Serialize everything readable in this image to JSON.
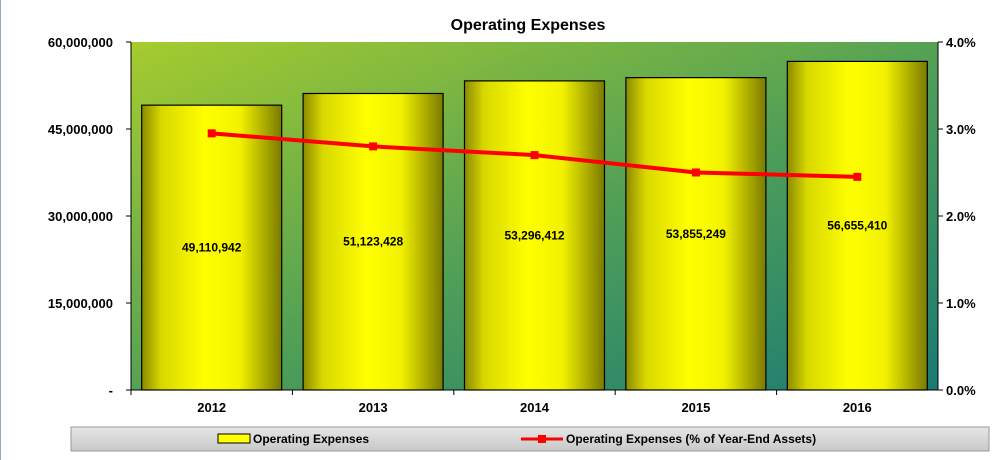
{
  "chart_data": {
    "type": "bar",
    "title": "Operating Expenses",
    "categories": [
      "2012",
      "2013",
      "2014",
      "2015",
      "2016"
    ],
    "series": [
      {
        "name": "Operating Expenses",
        "type": "bar",
        "axis": "left",
        "values": [
          49110942,
          51123428,
          53296412,
          53855249,
          56655410
        ],
        "labels": [
          "49,110,942",
          "51,123,428",
          "53,296,412",
          "53,855,249",
          "56,655,410"
        ],
        "color": "#ffff00"
      },
      {
        "name": "Operating Expenses (% of Year-End Assets)",
        "type": "line",
        "axis": "right",
        "values": [
          2.95,
          2.8,
          2.7,
          2.5,
          2.45
        ],
        "color": "#ff0000"
      }
    ],
    "y_left": {
      "ylim": [
        0,
        60000000
      ],
      "ticks": [
        0,
        15000000,
        30000000,
        45000000,
        60000000
      ],
      "tick_labels": [
        "-",
        "15,000,000",
        "30,000,000",
        "45,000,000",
        "60,000,000"
      ]
    },
    "y_right": {
      "ylim": [
        0,
        4
      ],
      "ticks": [
        0,
        1,
        2,
        3,
        4
      ],
      "tick_labels": [
        "0.0%",
        "1.0%",
        "2.0%",
        "3.0%",
        "4.0%"
      ]
    },
    "grid": false,
    "legend_position": "bottom",
    "colors": {
      "plot_top_left": "#a6cc2e",
      "plot_bottom_right": "#1a7a74",
      "legend_bg": "#d9d9d9"
    }
  }
}
